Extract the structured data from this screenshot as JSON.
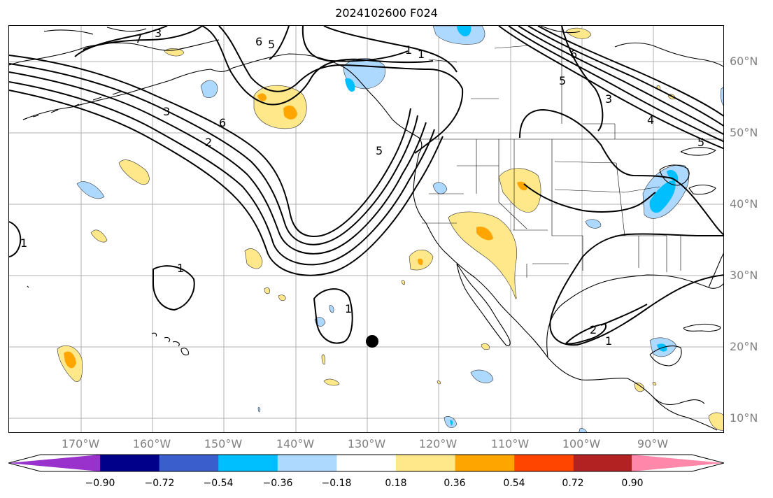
{
  "title": "2024102600 F024",
  "lat_labels": [
    "60°N",
    "50°N",
    "40°N",
    "30°N",
    "20°N",
    "10°N"
  ],
  "lon_labels": [
    "170°W",
    "160°W",
    "150°W",
    "140°W",
    "130°W",
    "120°W",
    "110°W",
    "100°W",
    "90°W"
  ],
  "contour_labels": [
    "3",
    "7",
    "6",
    "5",
    "1",
    "3",
    "6",
    "2",
    "5",
    "6",
    "5",
    "3",
    "4",
    "5",
    "1",
    "1",
    "1",
    "2",
    "1",
    "1"
  ],
  "colorbar": {
    "ticks": [
      "−0.90",
      "−0.72",
      "−0.54",
      "−0.36",
      "−0.18",
      "0.18",
      "0.36",
      "0.54",
      "0.72",
      "0.90"
    ],
    "colors": [
      "#9932cc",
      "#00008b",
      "#3a5fcd",
      "#00bfff",
      "#add8ff",
      "#ffffff",
      "#ffe88a",
      "#ffa500",
      "#ff4500",
      "#b22222",
      "#ff88aa"
    ]
  },
  "colors": {
    "coastline": "#000000",
    "gridline": "#b0b0b0",
    "contour": "#000000",
    "label": "#808080"
  },
  "marker": "black-dot"
}
